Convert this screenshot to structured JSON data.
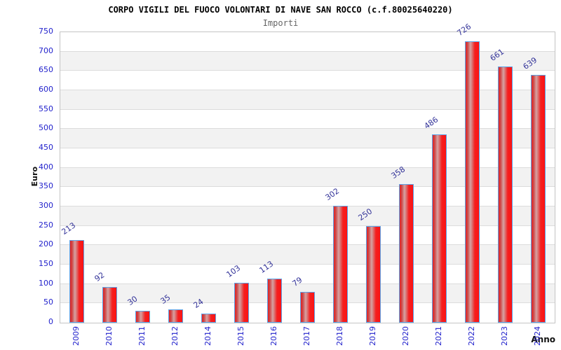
{
  "title": "CORPO VIGILI DEL FUOCO VOLONTARI DI NAVE SAN ROCCO (c.f.80025640220)",
  "subtitle": "Importi",
  "chart_data": {
    "type": "bar",
    "title": "CORPO VIGILI DEL FUOCO VOLONTARI DI NAVE SAN ROCCO (c.f.80025640220)",
    "subtitle": "Importi",
    "categories": [
      "2009",
      "2010",
      "2011",
      "2012",
      "2014",
      "2015",
      "2016",
      "2017",
      "2018",
      "2019",
      "2020",
      "2021",
      "2022",
      "2023",
      "2024"
    ],
    "values": [
      213,
      92,
      30,
      35,
      24,
      103,
      113,
      79,
      302,
      250,
      358,
      486,
      726,
      661,
      639
    ],
    "xlabel": "Anno",
    "ylabel": "Euro",
    "ylim": [
      0,
      750
    ],
    "ytick_step": 50,
    "grid": true,
    "legend": false,
    "colors": {
      "bar_main": "#f52020",
      "bar_highlight": "#d6a2a2",
      "bar_border": "#5ba3e8",
      "axis_tick_label": "#2222cc",
      "value_label": "#333399",
      "band_alt": "#f2f2f2",
      "grid_line": "#dcdcdc",
      "plot_border": "#c4c4c4",
      "title_color": "#000000",
      "subtitle_color": "#666666"
    }
  }
}
